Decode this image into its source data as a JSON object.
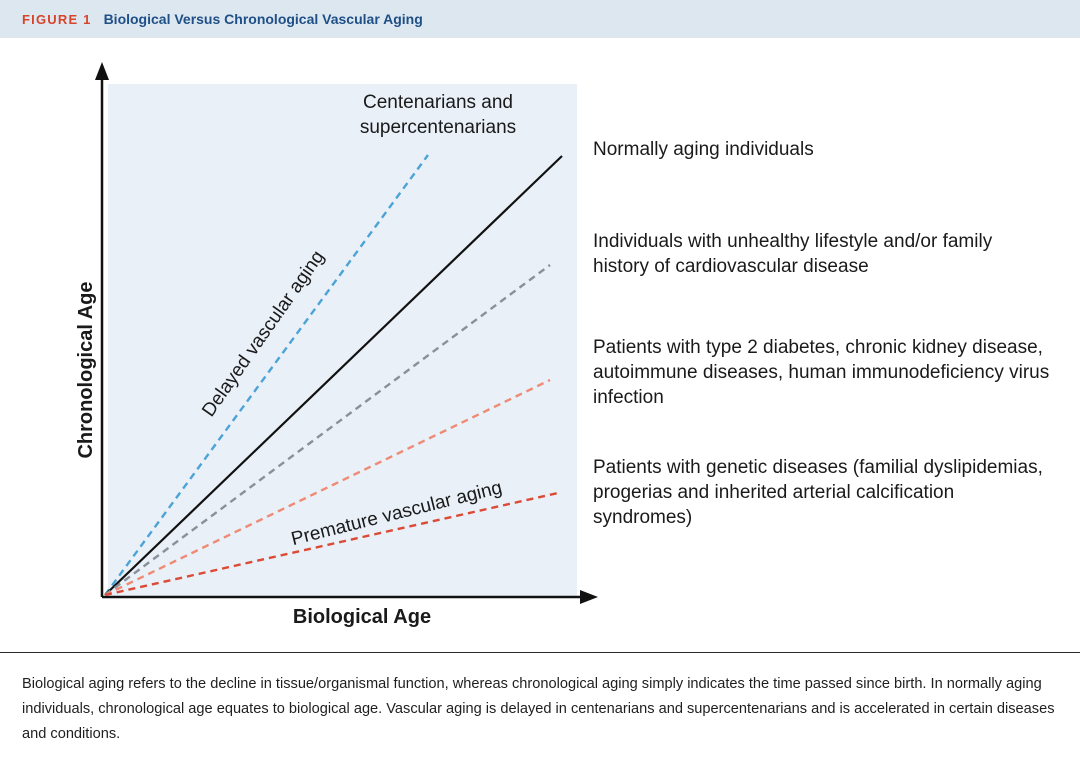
{
  "header": {
    "figure_number": "FIGURE 1",
    "title": "Biological Versus Chronological Vascular Aging"
  },
  "diagram": {
    "y_axis_label": "Chronological Age",
    "x_axis_label": "Biological Age",
    "top_group_label": "Centenarians and supercentenarians",
    "delayed_label": "Delayed vascular aging",
    "premature_label": "Premature vascular aging",
    "colors": {
      "panel_bg": "#e9f0f8",
      "blue_line": "#4ba3d6",
      "black_line": "#111111",
      "gray_line": "#8a8f99",
      "salmon_line": "#ef8a74",
      "red_line": "#dc4a35"
    },
    "categories": [
      "Normally aging individuals",
      "Individuals with unhealthy lifestyle and/or family history of cardiovascular disease",
      "Patients with type 2 diabetes, chronic kidney disease, autoimmune diseases, human immunodeficiency virus infection",
      "Patients with genetic diseases (familial dyslipidemias, progerias and inherited arterial calcification syndromes)"
    ]
  },
  "caption": "Biological aging refers to the decline in tissue/organismal function, whereas chronological aging simply indicates the time passed since birth. In normally aging individuals, chronological age equates to biological age. Vascular aging is delayed in centenarians and supercentenarians and is accelerated in certain diseases and conditions."
}
